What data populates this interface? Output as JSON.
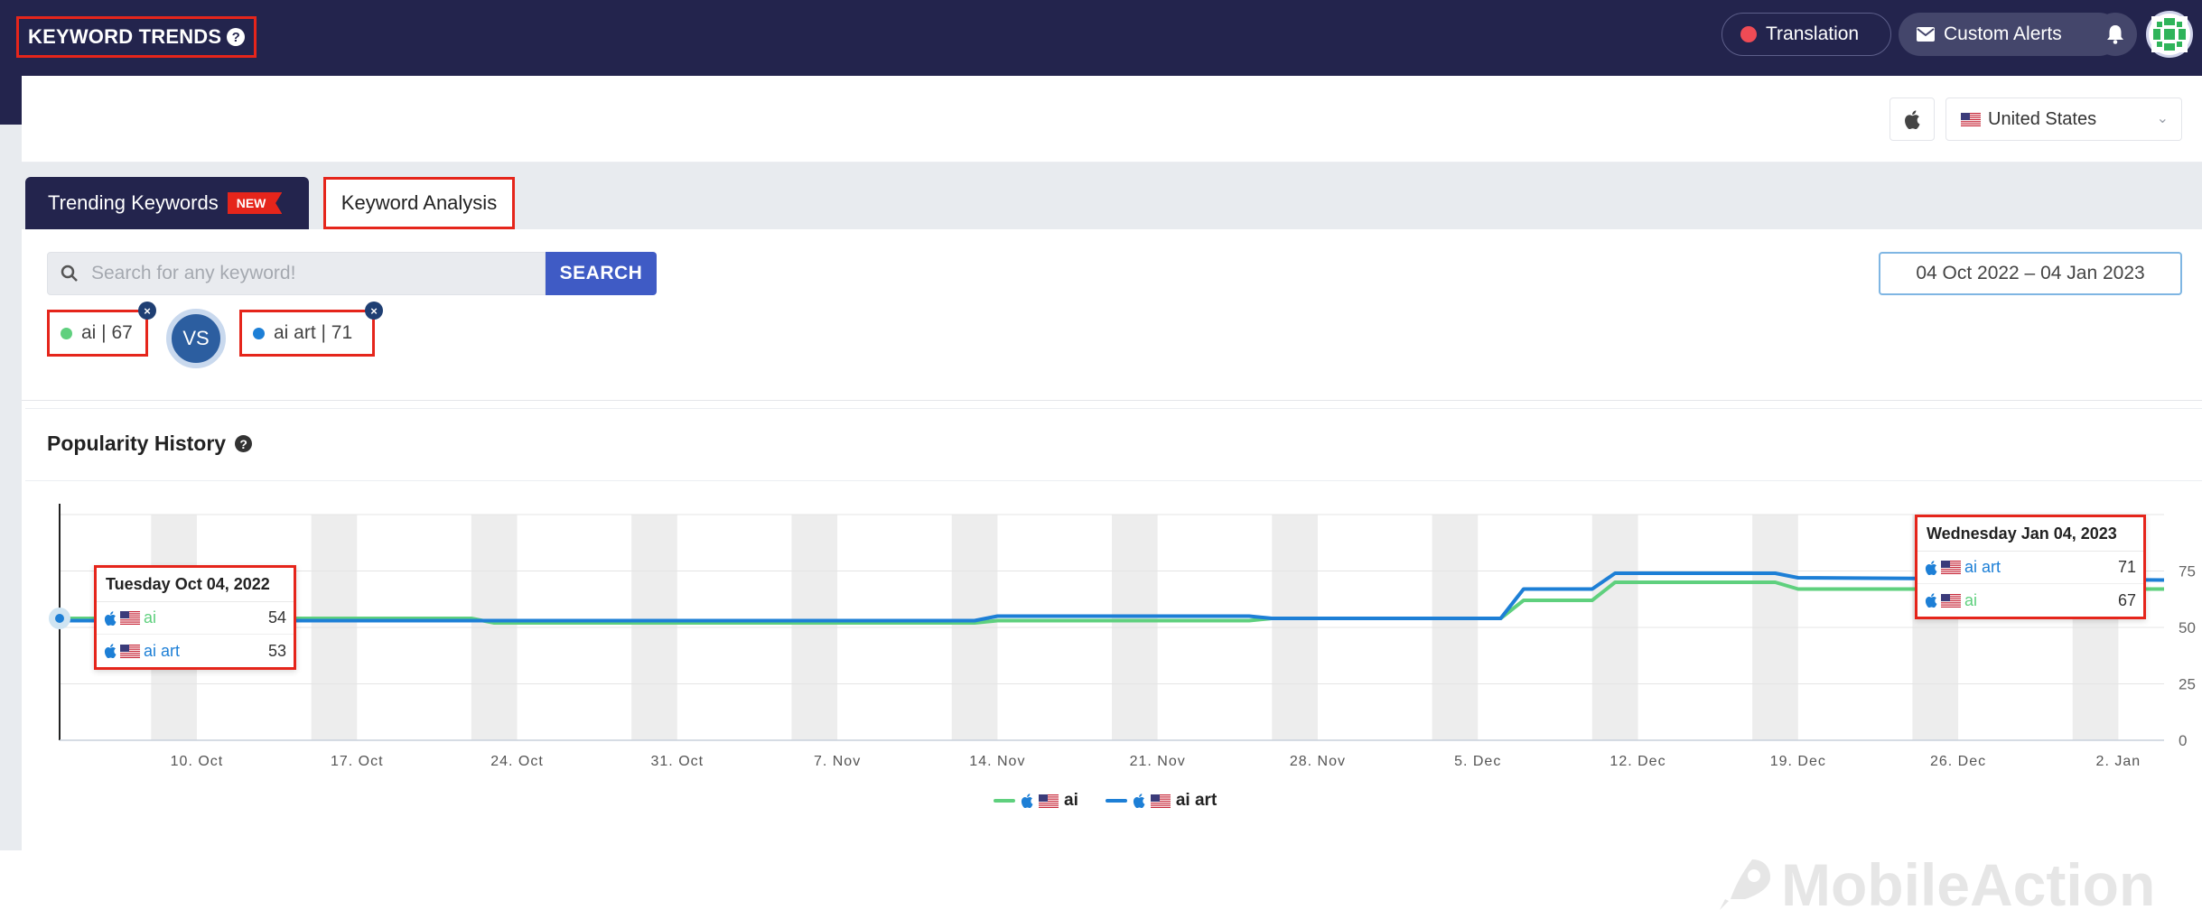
{
  "header": {
    "title": "KEYWORD TRENDS",
    "translation_label": "Translation",
    "alerts_label": "Custom Alerts"
  },
  "filters": {
    "country": "United States"
  },
  "tabs": [
    {
      "label": "Trending Keywords",
      "badge": "NEW",
      "active": true
    },
    {
      "label": "Keyword Analysis",
      "active": false
    }
  ],
  "search": {
    "placeholder": "Search for any keyword!",
    "button": "SEARCH",
    "date_range": "04 Oct 2022 – 04 Jan 2023"
  },
  "keywords": [
    {
      "label": "ai | 67",
      "color": "#5fd07e"
    },
    {
      "label": "ai art | 71",
      "color": "#1d7fd6"
    }
  ],
  "vs_label": "VS",
  "history": {
    "title": "Popularity History"
  },
  "tooltips": {
    "left": {
      "title": "Tuesday Oct 04, 2022",
      "rows": [
        {
          "name": "ai",
          "value": "54",
          "color": "#5fd07e"
        },
        {
          "name": "ai art",
          "value": "53",
          "color": "#1d7fd6"
        }
      ]
    },
    "right": {
      "title": "Wednesday Jan 04, 2023",
      "rows": [
        {
          "name": "ai art",
          "value": "71",
          "color": "#1d7fd6"
        },
        {
          "name": "ai",
          "value": "67",
          "color": "#5fd07e"
        }
      ]
    }
  },
  "legend": [
    {
      "name": "ai",
      "color": "#5fd07e"
    },
    {
      "name": "ai art",
      "color": "#1d7fd6"
    }
  ],
  "watermark": "MobileAction",
  "chart_data": {
    "type": "line",
    "xlabel": "",
    "ylabel": "",
    "x_tick_labels": [
      "10. Oct",
      "17. Oct",
      "24. Oct",
      "31. Oct",
      "7. Nov",
      "14. Nov",
      "21. Nov",
      "28. Nov",
      "5. Dec",
      "12. Dec",
      "19. Dec",
      "26. Dec",
      "2. Jan"
    ],
    "y_ticks": [
      0,
      25,
      50,
      75
    ],
    "ylim": [
      0,
      100
    ],
    "xlim": [
      "2022-10-04",
      "2023-01-04"
    ],
    "grid": "weekend bands",
    "legend_position": "bottom",
    "series": [
      {
        "name": "ai",
        "color": "#5fd07e",
        "points": [
          [
            "2022-10-04",
            54
          ],
          [
            "2022-10-22",
            54
          ],
          [
            "2022-10-23",
            52
          ],
          [
            "2022-11-13",
            52
          ],
          [
            "2022-11-14",
            53
          ],
          [
            "2022-11-25",
            53
          ],
          [
            "2022-11-26",
            54
          ],
          [
            "2022-12-06",
            54
          ],
          [
            "2022-12-07",
            62
          ],
          [
            "2022-12-10",
            62
          ],
          [
            "2022-12-11",
            70
          ],
          [
            "2022-12-18",
            70
          ],
          [
            "2022-12-19",
            67
          ],
          [
            "2023-01-04",
            67
          ]
        ]
      },
      {
        "name": "ai art",
        "color": "#1d7fd6",
        "points": [
          [
            "2022-10-04",
            53
          ],
          [
            "2022-11-13",
            53
          ],
          [
            "2022-11-14",
            55
          ],
          [
            "2022-11-25",
            55
          ],
          [
            "2022-11-26",
            54
          ],
          [
            "2022-12-06",
            54
          ],
          [
            "2022-12-07",
            67
          ],
          [
            "2022-12-10",
            67
          ],
          [
            "2022-12-11",
            74
          ],
          [
            "2022-12-18",
            74
          ],
          [
            "2022-12-19",
            72
          ],
          [
            "2023-01-04",
            71
          ]
        ]
      }
    ]
  }
}
